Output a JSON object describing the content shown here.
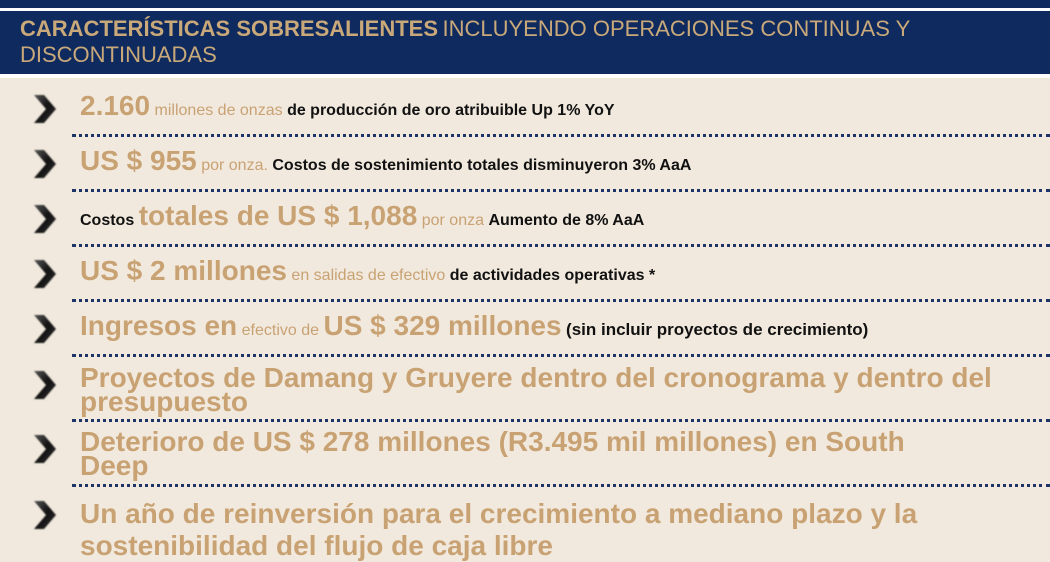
{
  "header": {
    "bold_title": "CARACTERÍSTICAS SOBRESALIENTES",
    "rest_title": "INCLUYENDO OPERACIONES CONTINUAS Y DISCONTINUADAS"
  },
  "items": [
    {
      "a": "2.160",
      "b": "millones de onzas",
      "c": "de producción de oro atribuible Up 1% YoY"
    },
    {
      "a": "US $ 955",
      "b": "por onza.",
      "c": "Costos de sostenimiento totales disminuyeron 3% AaA"
    },
    {
      "pre": "Costos",
      "a": "totales de US $ 1,088",
      "b": "por onza",
      "c": "Aumento de 8% AaA"
    },
    {
      "a": "US $ 2 millones",
      "b": "en salidas de efectivo",
      "c": "de actividades operativas *"
    },
    {
      "a": "Ingresos en",
      "b": "efectivo de",
      "a2": "US $ 329 millones",
      "c": "(sin incluir proyectos de crecimiento)"
    },
    {
      "text": "Proyectos de Damang y Gruyere dentro del cronograma y dentro del presupuesto"
    },
    {
      "text": "Deterioro de US $ 278 millones (R3.495 mil millones) en South Deep"
    },
    {
      "text": "Un año de reinversión para el crecimiento a mediano plazo y la sostenibilidad del flujo de caja libre"
    }
  ],
  "colors": {
    "navy": "#0f2a5e",
    "tan": "#c9a274",
    "background": "#f1e9dd"
  }
}
